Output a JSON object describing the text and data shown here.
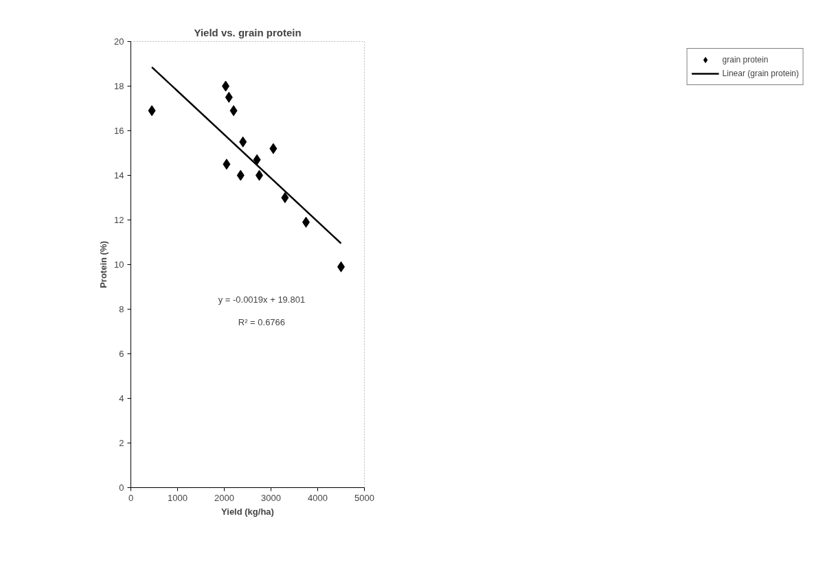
{
  "chart_data": {
    "type": "scatter",
    "title": "Yield vs. grain protein",
    "xlabel": "Yield (kg/ha)",
    "ylabel": "Protein (%)",
    "xlim": [
      0,
      5000
    ],
    "xticks": [
      0,
      1000,
      2000,
      3000,
      4000,
      5000
    ],
    "ylim": [
      0,
      20
    ],
    "yticks": [
      0,
      2,
      4,
      6,
      8,
      10,
      12,
      14,
      16,
      18,
      20
    ],
    "grid": false,
    "legend": "right",
    "marker": "diamond",
    "series": [
      {
        "name": "grain protein",
        "color": "#000000",
        "x": [
          450,
          2030,
          2100,
          2200,
          2400,
          2050,
          2350,
          2700,
          2750,
          3050,
          3300,
          3750,
          4500
        ],
        "values": [
          16.9,
          18.0,
          17.5,
          16.9,
          15.5,
          14.5,
          14.0,
          14.7,
          14.0,
          15.2,
          13.0,
          11.9,
          9.9
        ]
      },
      {
        "name": "Linear (grain protein)",
        "type": "line",
        "line_style": "solid",
        "marker": "none",
        "color": "#000000",
        "x": [
          450,
          4500
        ],
        "values": [
          18.85,
          10.95
        ]
      }
    ],
    "annotations": [
      "y = -0.0019x + 19.801",
      "R² = 0.6766"
    ]
  }
}
